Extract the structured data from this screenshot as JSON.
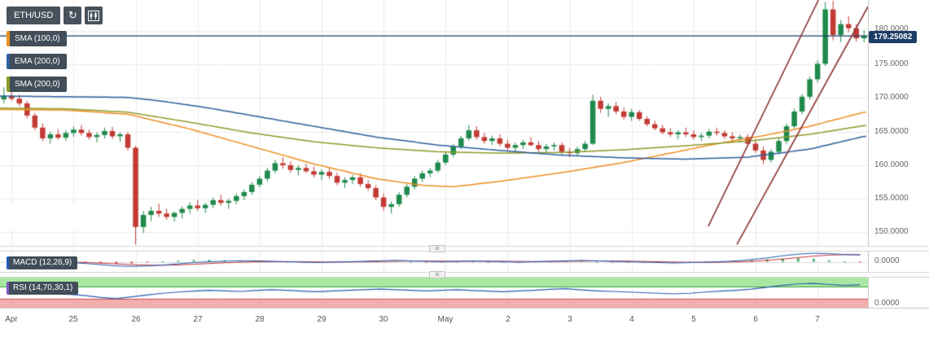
{
  "toolbar": {
    "symbol": "ETH/USD",
    "refresh_glyph": "↻"
  },
  "overlays_legend": [
    {
      "label": "SMA (100,0)",
      "color": "#ef8e1f"
    },
    {
      "label": "EMA (200,0)",
      "color": "#2d5f9e"
    },
    {
      "label": "SMA (200,0)",
      "color": "#8f9a27"
    }
  ],
  "macd_panel": {
    "label": "MACD (12,26,9)",
    "axis_label": "0.0000"
  },
  "rsi_panel": {
    "label": "RSI (14,70,30,1)",
    "axis_label": "0.0000"
  },
  "price_axis": {
    "labels": [
      "180.0000",
      "175.0000",
      "170.0000",
      "165.0000",
      "160.0000",
      "155.0000",
      "150.0000"
    ],
    "current_price_label": "179.25082"
  },
  "chart_data": {
    "type": "candlestick",
    "title": "ETH/USD",
    "price_range": [
      148.0,
      184.6
    ],
    "y_ticks": [
      180,
      175,
      170,
      165,
      160,
      155,
      150
    ],
    "x_labels": [
      "Apr",
      "25",
      "26",
      "27",
      "28",
      "29",
      "30",
      "May",
      "2",
      "3",
      "4",
      "5",
      "6",
      "7"
    ],
    "candles_per_label": 8,
    "current_price": 179.25082,
    "candles": [
      [
        169.8,
        171.6,
        169.2,
        170.3
      ],
      [
        170.3,
        170.9,
        169.6,
        169.9
      ],
      [
        169.9,
        170.5,
        168.8,
        169.2
      ],
      [
        169.2,
        169.6,
        167.0,
        167.4
      ],
      [
        167.4,
        167.8,
        165.2,
        165.6
      ],
      [
        165.6,
        166.2,
        163.6,
        164.0
      ],
      [
        164.0,
        165.0,
        163.2,
        164.6
      ],
      [
        164.6,
        165.4,
        163.8,
        164.1
      ],
      [
        164.1,
        165.2,
        163.6,
        164.8
      ],
      [
        164.8,
        165.8,
        164.2,
        165.3
      ],
      [
        165.3,
        166.0,
        164.4,
        164.8
      ],
      [
        164.8,
        165.3,
        163.8,
        164.2
      ],
      [
        164.2,
        164.9,
        163.4,
        164.5
      ],
      [
        164.5,
        165.6,
        164.0,
        165.1
      ],
      [
        165.1,
        165.7,
        163.9,
        164.3
      ],
      [
        164.3,
        164.9,
        163.5,
        164.6
      ],
      [
        164.6,
        165.0,
        162.2,
        162.6
      ],
      [
        162.6,
        162.9,
        148.2,
        150.8
      ],
      [
        150.8,
        153.2,
        149.9,
        152.6
      ],
      [
        152.6,
        153.8,
        151.7,
        153.2
      ],
      [
        153.2,
        154.3,
        152.3,
        152.8
      ],
      [
        152.8,
        153.5,
        151.9,
        152.3
      ],
      [
        152.3,
        153.1,
        151.6,
        152.9
      ],
      [
        152.9,
        153.9,
        152.1,
        153.5
      ],
      [
        153.5,
        154.5,
        152.8,
        154.0
      ],
      [
        154.0,
        154.8,
        153.2,
        153.6
      ],
      [
        153.6,
        154.4,
        152.9,
        154.1
      ],
      [
        154.1,
        155.2,
        153.6,
        154.8
      ],
      [
        154.8,
        155.6,
        154.0,
        154.4
      ],
      [
        154.4,
        155.0,
        153.5,
        154.7
      ],
      [
        154.7,
        155.8,
        154.2,
        155.4
      ],
      [
        155.4,
        156.4,
        154.8,
        156.0
      ],
      [
        156.0,
        157.5,
        155.6,
        157.1
      ],
      [
        157.1,
        158.4,
        156.7,
        158.0
      ],
      [
        158.0,
        159.6,
        157.6,
        159.2
      ],
      [
        159.2,
        160.8,
        158.8,
        160.3
      ],
      [
        160.3,
        161.2,
        159.5,
        160.0
      ],
      [
        160.0,
        160.6,
        158.9,
        159.3
      ],
      [
        159.3,
        160.0,
        158.5,
        159.6
      ],
      [
        159.6,
        160.2,
        158.8,
        159.1
      ],
      [
        159.1,
        159.8,
        158.2,
        158.6
      ],
      [
        158.6,
        159.4,
        157.8,
        159.0
      ],
      [
        159.0,
        159.6,
        158.0,
        158.4
      ],
      [
        158.4,
        158.9,
        157.0,
        157.4
      ],
      [
        157.4,
        158.2,
        156.6,
        157.8
      ],
      [
        157.8,
        158.6,
        157.2,
        158.2
      ],
      [
        158.2,
        158.8,
        156.8,
        157.2
      ],
      [
        157.2,
        157.8,
        156.2,
        156.6
      ],
      [
        156.6,
        157.0,
        154.8,
        155.2
      ],
      [
        155.2,
        155.8,
        153.2,
        153.8
      ],
      [
        153.8,
        154.6,
        152.8,
        154.2
      ],
      [
        154.2,
        156.0,
        153.8,
        155.6
      ],
      [
        155.6,
        157.2,
        155.2,
        156.8
      ],
      [
        156.8,
        158.4,
        156.4,
        158.0
      ],
      [
        158.0,
        159.2,
        157.5,
        158.8
      ],
      [
        158.8,
        159.6,
        158.2,
        159.2
      ],
      [
        159.2,
        160.8,
        158.9,
        160.4
      ],
      [
        160.4,
        162.0,
        160.0,
        161.6
      ],
      [
        161.6,
        163.2,
        161.2,
        162.8
      ],
      [
        162.8,
        164.4,
        162.4,
        164.0
      ],
      [
        164.0,
        166.0,
        163.6,
        165.2
      ],
      [
        165.2,
        165.8,
        163.8,
        164.2
      ],
      [
        164.2,
        164.8,
        163.2,
        163.6
      ],
      [
        163.6,
        164.4,
        163.0,
        164.0
      ],
      [
        164.0,
        164.6,
        162.8,
        163.2
      ],
      [
        163.2,
        163.8,
        162.2,
        162.6
      ],
      [
        162.6,
        163.4,
        162.0,
        163.0
      ],
      [
        163.0,
        163.8,
        162.4,
        163.4
      ],
      [
        163.4,
        164.2,
        162.8,
        163.0
      ],
      [
        163.0,
        163.6,
        162.0,
        162.4
      ],
      [
        162.4,
        163.2,
        161.8,
        162.8
      ],
      [
        162.8,
        163.4,
        162.2,
        163.0
      ],
      [
        163.0,
        163.4,
        161.6,
        162.0
      ],
      [
        162.0,
        162.6,
        161.2,
        161.8
      ],
      [
        161.8,
        162.8,
        161.4,
        162.4
      ],
      [
        162.4,
        163.6,
        162.0,
        163.2
      ],
      [
        163.2,
        170.5,
        163.0,
        169.6
      ],
      [
        169.6,
        170.2,
        167.8,
        168.4
      ],
      [
        168.4,
        169.2,
        167.2,
        168.8
      ],
      [
        168.8,
        169.4,
        167.6,
        168.0
      ],
      [
        168.0,
        168.6,
        166.8,
        167.2
      ],
      [
        167.2,
        168.4,
        166.6,
        167.9
      ],
      [
        167.9,
        168.2,
        166.6,
        166.9
      ],
      [
        166.9,
        167.3,
        165.8,
        166.1
      ],
      [
        166.1,
        166.6,
        165.2,
        165.5
      ],
      [
        165.5,
        166.0,
        164.6,
        164.9
      ],
      [
        164.9,
        165.5,
        164.2,
        164.6
      ],
      [
        164.6,
        165.2,
        163.9,
        164.9
      ],
      [
        164.9,
        165.6,
        164.2,
        164.6
      ],
      [
        164.6,
        165.2,
        163.8,
        164.2
      ],
      [
        164.2,
        164.8,
        163.6,
        164.4
      ],
      [
        164.4,
        165.4,
        164.0,
        165.0
      ],
      [
        165.0,
        165.6,
        164.4,
        164.8
      ],
      [
        164.8,
        165.2,
        163.9,
        164.3
      ],
      [
        164.3,
        164.9,
        163.6,
        164.0
      ],
      [
        164.0,
        164.6,
        163.4,
        164.2
      ],
      [
        164.2,
        164.6,
        162.8,
        163.2
      ],
      [
        163.2,
        163.8,
        161.8,
        162.2
      ],
      [
        162.2,
        162.8,
        160.2,
        160.8
      ],
      [
        160.8,
        162.4,
        160.4,
        162.0
      ],
      [
        162.0,
        164.0,
        161.6,
        163.6
      ],
      [
        163.6,
        166.2,
        163.2,
        165.8
      ],
      [
        165.8,
        168.4,
        165.4,
        168.0
      ],
      [
        168.0,
        170.6,
        167.6,
        170.2
      ],
      [
        170.2,
        173.2,
        169.8,
        172.8
      ],
      [
        172.8,
        175.6,
        172.3,
        175.1
      ],
      [
        175.1,
        184.3,
        174.8,
        183.2
      ],
      [
        183.2,
        184.5,
        178.6,
        179.4
      ],
      [
        179.4,
        181.6,
        178.3,
        181.0
      ],
      [
        181.0,
        182.2,
        179.8,
        180.4
      ],
      [
        180.4,
        181.0,
        178.4,
        178.9
      ],
      [
        178.9,
        180.1,
        178.3,
        179.25
      ]
    ],
    "overlays": [
      {
        "name": "SMA (100,0)",
        "color": "#ef8e1f",
        "points": [
          [
            0,
            168.3
          ],
          [
            8,
            168.2
          ],
          [
            16,
            167.6
          ],
          [
            24,
            165.4
          ],
          [
            32,
            162.8
          ],
          [
            40,
            160.2
          ],
          [
            48,
            158.0
          ],
          [
            54,
            157.0
          ],
          [
            58,
            156.8
          ],
          [
            64,
            157.6
          ],
          [
            72,
            158.9
          ],
          [
            80,
            160.4
          ],
          [
            86,
            161.8
          ],
          [
            92,
            163.2
          ],
          [
            98,
            164.4
          ],
          [
            104,
            165.8
          ],
          [
            111,
            167.9
          ]
        ]
      },
      {
        "name": "SMA (200,0)",
        "color": "#8f9a27",
        "points": [
          [
            0,
            168.5
          ],
          [
            8,
            168.4
          ],
          [
            16,
            167.9
          ],
          [
            24,
            166.4
          ],
          [
            32,
            164.8
          ],
          [
            40,
            163.5
          ],
          [
            48,
            162.6
          ],
          [
            56,
            162.0
          ],
          [
            64,
            161.8
          ],
          [
            72,
            161.9
          ],
          [
            80,
            162.3
          ],
          [
            88,
            162.9
          ],
          [
            96,
            163.6
          ],
          [
            104,
            164.6
          ],
          [
            111,
            165.9
          ]
        ]
      },
      {
        "name": "EMA (200,0)",
        "color": "#2d5f9e",
        "points": [
          [
            0,
            170.3
          ],
          [
            8,
            170.2
          ],
          [
            16,
            170.1
          ],
          [
            20,
            169.6
          ],
          [
            26,
            168.6
          ],
          [
            32,
            167.4
          ],
          [
            40,
            165.8
          ],
          [
            48,
            164.2
          ],
          [
            56,
            163.0
          ],
          [
            64,
            162.2
          ],
          [
            72,
            161.5
          ],
          [
            80,
            161.1
          ],
          [
            88,
            160.9
          ],
          [
            96,
            161.2
          ],
          [
            104,
            162.4
          ],
          [
            111,
            164.3
          ]
        ]
      }
    ],
    "channel_lines": [
      {
        "x1": 0.816,
        "p1": 150.9,
        "x2": 0.943,
        "p2": 184.6
      },
      {
        "x1": 0.849,
        "p1": 148.2,
        "x2": 1.0,
        "p2": 183.6
      }
    ],
    "macd": {
      "label": "MACD (12,26,9)",
      "range": [
        -1.2,
        1.2
      ],
      "macd_line": [
        0.1,
        0.05,
        0.0,
        -0.05,
        -0.1,
        -0.2,
        -0.35,
        -0.5,
        -0.55,
        -0.5,
        -0.4,
        -0.25,
        -0.1,
        0.0,
        0.05,
        0.1,
        0.1,
        0.05,
        0.0,
        -0.05,
        -0.1,
        -0.05,
        0.0,
        0.05,
        0.1,
        0.15,
        0.1,
        0.05,
        0.0,
        0.05,
        0.1,
        0.05,
        0.0,
        -0.05,
        0.0,
        0.05,
        0.1,
        0.15,
        0.1,
        0.05,
        0.0,
        -0.05,
        -0.1,
        -0.15,
        -0.1,
        -0.05,
        0.0,
        0.1,
        0.25,
        0.45,
        0.7,
        0.9,
        1.0,
        0.95,
        0.85,
        0.8
      ],
      "signal_line": [
        0.08,
        0.06,
        0.03,
        0.0,
        -0.04,
        -0.09,
        -0.16,
        -0.26,
        -0.35,
        -0.41,
        -0.42,
        -0.38,
        -0.3,
        -0.21,
        -0.13,
        -0.06,
        -0.01,
        0.01,
        0.01,
        0.0,
        -0.03,
        -0.04,
        -0.03,
        -0.01,
        0.02,
        0.06,
        0.08,
        0.08,
        0.06,
        0.05,
        0.06,
        0.06,
        0.05,
        0.03,
        0.02,
        0.02,
        0.04,
        0.07,
        0.09,
        0.08,
        0.06,
        0.03,
        0.0,
        -0.04,
        -0.07,
        -0.08,
        -0.06,
        -0.02,
        0.05,
        0.16,
        0.31,
        0.49,
        0.66,
        0.78,
        0.83,
        0.82
      ],
      "histogram": [
        0.02,
        -0.01,
        -0.03,
        -0.05,
        -0.06,
        -0.11,
        -0.19,
        -0.24,
        -0.2,
        -0.09,
        0.02,
        0.13,
        0.2,
        0.21,
        0.18,
        0.16,
        0.11,
        0.04,
        -0.01,
        -0.05,
        -0.07,
        -0.01,
        0.03,
        0.06,
        0.08,
        0.09,
        0.02,
        -0.03,
        -0.06,
        0.0,
        0.04,
        -0.01,
        -0.05,
        -0.08,
        -0.02,
        0.03,
        0.06,
        0.08,
        0.01,
        -0.03,
        -0.06,
        -0.08,
        -0.1,
        -0.11,
        -0.03,
        0.03,
        0.06,
        0.12,
        0.2,
        0.29,
        0.39,
        0.41,
        0.34,
        0.17,
        0.02,
        -0.02
      ]
    },
    "rsi": {
      "label": "RSI (14,70,30,1)",
      "overbought": 70,
      "oversold": 30,
      "values": [
        55,
        52,
        50,
        47,
        44,
        40,
        34,
        30,
        36,
        42,
        48,
        52,
        55,
        58,
        56,
        54,
        57,
        60,
        58,
        55,
        53,
        56,
        58,
        60,
        62,
        60,
        58,
        56,
        58,
        60,
        57,
        55,
        53,
        56,
        58,
        61,
        63,
        59,
        56,
        54,
        52,
        50,
        48,
        46,
        48,
        52,
        55,
        58,
        62,
        68,
        74,
        79,
        81,
        77,
        74,
        76
      ]
    },
    "colors": {
      "up": "#1f8a4c",
      "down": "#c23b34",
      "grid": "#ececec",
      "channel": "#8e3434",
      "price_line": "#1c3e66",
      "macd": "#1d5bb8",
      "macd_signal": "#cc3333",
      "hist_up": "#4caf6e",
      "hist_down": "#e05353",
      "rsi": "#2a5cae",
      "rsi_upper_fill": "#a9e8a2",
      "rsi_lower_fill": "#f3aeae",
      "rsi_upper_line": "#3fa13f",
      "rsi_lower_line": "#d05050"
    }
  }
}
